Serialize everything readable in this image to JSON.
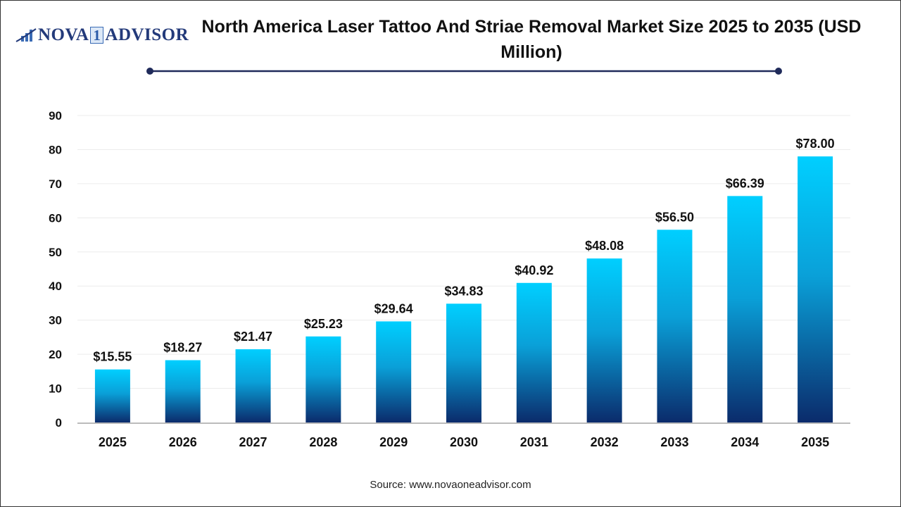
{
  "logo": {
    "text_left": "NOVA",
    "text_mid": "1",
    "text_right": "ADVISOR"
  },
  "chart_data": {
    "type": "bar",
    "title": "North America Laser Tattoo And Striae Removal Market Size 2025 to 2035 (USD Million)",
    "categories": [
      "2025",
      "2026",
      "2027",
      "2028",
      "2029",
      "2030",
      "2031",
      "2032",
      "2033",
      "2034",
      "2035"
    ],
    "values": [
      15.55,
      18.27,
      21.47,
      25.23,
      29.64,
      34.83,
      40.92,
      48.08,
      56.5,
      66.39,
      78.0
    ],
    "data_labels": [
      "$15.55",
      "$18.27",
      "$21.47",
      "$25.23",
      "$29.64",
      "$34.83",
      "$40.92",
      "$48.08",
      "$56.50",
      "$66.39",
      "$78.00"
    ],
    "yticks": [
      0,
      10,
      20,
      30,
      40,
      50,
      60,
      70,
      80,
      90
    ],
    "ylim": [
      0,
      90
    ],
    "xlabel": "",
    "ylabel": "",
    "grid": true,
    "colors": {
      "bar_top": "#00CFFF",
      "bar_bottom": "#0B2B6B",
      "title_rule": "#1F2A5A"
    }
  },
  "source": "Source: www.novaoneadvisor.com"
}
